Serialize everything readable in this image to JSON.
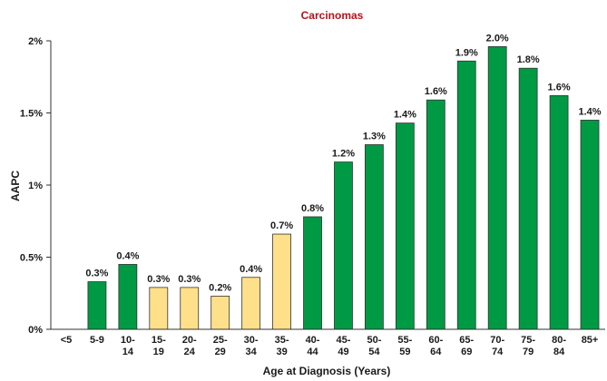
{
  "chart_data": {
    "type": "bar",
    "title": "Carcinomas",
    "xlabel": "Age at Diagnosis (Years)",
    "ylabel": "AAPC",
    "ylim": [
      0,
      2
    ],
    "yticks": [
      "0%",
      "0.5%",
      "1%",
      "1.5%",
      "2%"
    ],
    "grid": false,
    "colors": {
      "significant": "#009a44",
      "not_significant": "#ffe08a",
      "title": "#b5121b"
    },
    "categories": [
      {
        "line1": "<5",
        "line2": "",
        "value": null,
        "label": "",
        "significant": null
      },
      {
        "line1": "5-9",
        "line2": "",
        "value": 0.33,
        "label": "0.3%",
        "significant": true
      },
      {
        "line1": "10-",
        "line2": "14",
        "value": 0.45,
        "label": "0.4%",
        "significant": true
      },
      {
        "line1": "15-",
        "line2": "19",
        "value": 0.29,
        "label": "0.3%",
        "significant": false
      },
      {
        "line1": "20-",
        "line2": "24",
        "value": 0.29,
        "label": "0.3%",
        "significant": false
      },
      {
        "line1": "25-",
        "line2": "29",
        "value": 0.23,
        "label": "0.2%",
        "significant": false
      },
      {
        "line1": "30-",
        "line2": "34",
        "value": 0.36,
        "label": "0.4%",
        "significant": false
      },
      {
        "line1": "35-",
        "line2": "39",
        "value": 0.66,
        "label": "0.7%",
        "significant": false
      },
      {
        "line1": "40-",
        "line2": "44",
        "value": 0.78,
        "label": "0.8%",
        "significant": true
      },
      {
        "line1": "45-",
        "line2": "49",
        "value": 1.16,
        "label": "1.2%",
        "significant": true
      },
      {
        "line1": "50-",
        "line2": "54",
        "value": 1.28,
        "label": "1.3%",
        "significant": true
      },
      {
        "line1": "55-",
        "line2": "59",
        "value": 1.43,
        "label": "1.4%",
        "significant": true
      },
      {
        "line1": "60-",
        "line2": "64",
        "value": 1.59,
        "label": "1.6%",
        "significant": true
      },
      {
        "line1": "65-",
        "line2": "69",
        "value": 1.86,
        "label": "1.9%",
        "significant": true
      },
      {
        "line1": "70-",
        "line2": "74",
        "value": 1.96,
        "label": "2.0%",
        "significant": true
      },
      {
        "line1": "75-",
        "line2": "79",
        "value": 1.81,
        "label": "1.8%",
        "significant": true
      },
      {
        "line1": "80-",
        "line2": "84",
        "value": 1.62,
        "label": "1.6%",
        "significant": true
      },
      {
        "line1": "85+",
        "line2": "",
        "value": 1.45,
        "label": "1.4%",
        "significant": true
      }
    ]
  }
}
